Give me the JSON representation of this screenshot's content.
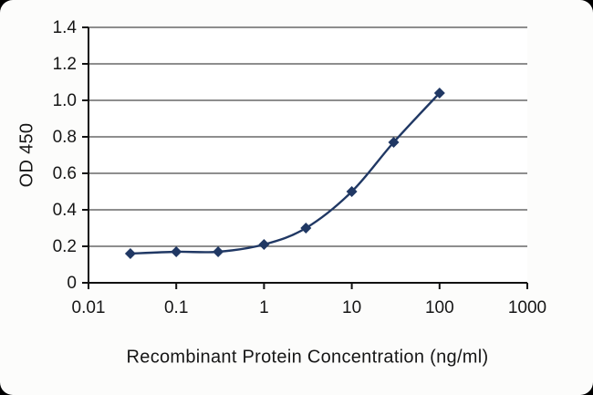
{
  "chart_data": {
    "type": "line",
    "title": "",
    "xlabel": "Recombinant Protein Concentration (ng/ml)",
    "ylabel": "OD 450",
    "x_scale": "log",
    "xlim": [
      0.01,
      1000
    ],
    "ylim": [
      0,
      1.4
    ],
    "x_ticks": [
      "0.01",
      "0.1",
      "1",
      "10",
      "100",
      "1000"
    ],
    "x_tick_values": [
      0.01,
      0.1,
      1,
      10,
      100,
      1000
    ],
    "y_ticks": [
      "0",
      "0.2",
      "0.4",
      "0.6",
      "0.8",
      "1.0",
      "1.2",
      "1.4"
    ],
    "y_tick_values": [
      0,
      0.2,
      0.4,
      0.6,
      0.8,
      1.0,
      1.2,
      1.4
    ],
    "grid": "horizontal",
    "legend": "none",
    "colors": {
      "line": "#203864",
      "marker": "#203864",
      "gridline": "#4a4a4a",
      "axis": "#111111",
      "plot_background": "#ffffff"
    },
    "series": [
      {
        "name": "OD 450",
        "marker": "diamond",
        "x": [
          0.03,
          0.1,
          0.3,
          1,
          3,
          10,
          30,
          100
        ],
        "y": [
          0.16,
          0.17,
          0.17,
          0.21,
          0.3,
          0.5,
          0.77,
          1.04
        ]
      }
    ]
  }
}
